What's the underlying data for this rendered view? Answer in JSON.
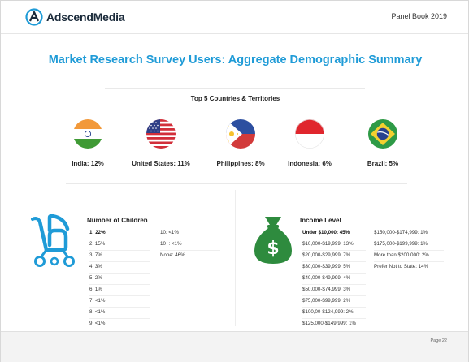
{
  "header": {
    "brand": "AdscendMedia",
    "panel_book": "Panel Book 2019"
  },
  "title": "Market Research Survey Users: Aggregate Demographic Summary",
  "countries": {
    "heading": "Top 5 Countries & Territories",
    "items": [
      {
        "label": "India: 12%",
        "flag": "india-flag-icon"
      },
      {
        "label": "United States: 11%",
        "flag": "usa-flag-icon"
      },
      {
        "label": "Philippines: 8%",
        "flag": "philippines-flag-icon"
      },
      {
        "label": "Indonesia: 6%",
        "flag": "indonesia-flag-icon"
      },
      {
        "label": "Brazil: 5%",
        "flag": "brazil-flag-icon"
      }
    ]
  },
  "children": {
    "heading": "Number of Children",
    "icon": "stroller-icon",
    "col1": [
      "1: 22%",
      "2: 15%",
      "3: 7%",
      "4: 3%",
      "5: 2%",
      "6: 1%",
      "7: <1%",
      "8: <1%",
      "9: <1%"
    ],
    "col2": [
      "10: <1%",
      "10+: <1%",
      "None: 46%"
    ]
  },
  "income": {
    "heading": "Income Level",
    "icon": "money-bag-icon",
    "col1": [
      "Under $10,000: 45%",
      "$10,000-$19,999: 13%",
      "$20,000-$29,999: 7%",
      "$30,000-$39,999: 5%",
      "$40,000-$49,999: 4%",
      "$50,000-$74,999: 3%",
      "$75,000-$99,999: 2%",
      "$100,00-$124,999: 2%",
      "$125,000-$149,999: 1%"
    ],
    "col2": [
      "$150,000-$174,999: 1%",
      "$175,000-$199,999: 1%",
      "More than $200,000: 2%",
      "Prefer Not to State: 14%"
    ]
  },
  "colors": {
    "accent": "#1f9bd7",
    "money": "#2e8b3e"
  },
  "footer": {
    "page": "Page 22"
  }
}
